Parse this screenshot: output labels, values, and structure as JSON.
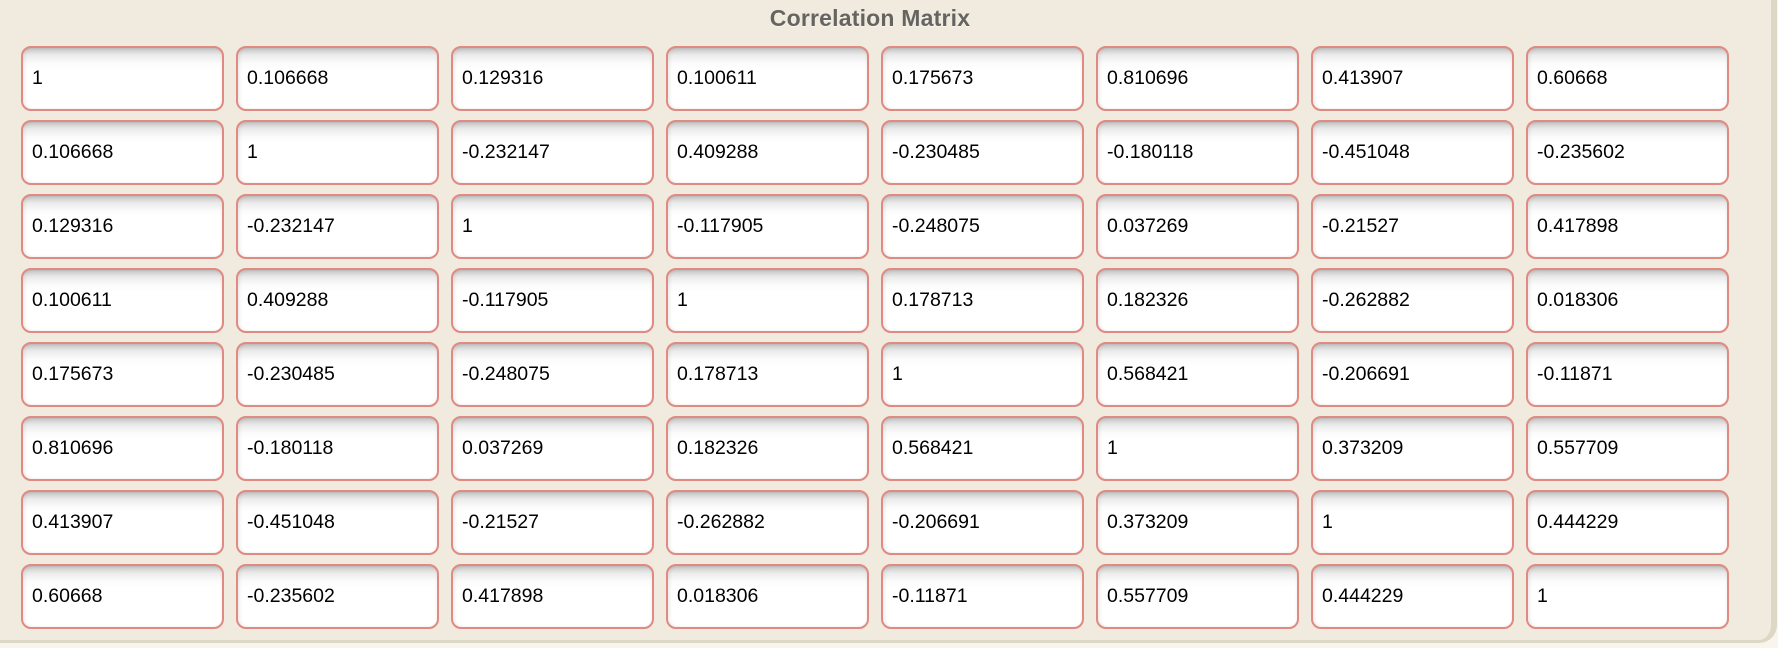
{
  "title": "Correlation Matrix",
  "colors": {
    "page_background": "#f8f5ec",
    "panel_background": "#f0ebde",
    "panel_edge": "#ddd7c6",
    "cell_border": "#e08a81",
    "cell_background": "#ffffff",
    "title_color": "#666460",
    "cell_text": "#000000"
  },
  "chart_data": {
    "type": "table",
    "title": "Correlation Matrix",
    "rows": 8,
    "cols": 8,
    "values": [
      [
        "1",
        "0.106668",
        "0.129316",
        "0.100611",
        "0.175673",
        "0.810696",
        "0.413907",
        "0.60668"
      ],
      [
        "0.106668",
        "1",
        "-0.232147",
        "0.409288",
        "-0.230485",
        "-0.180118",
        "-0.451048",
        "-0.235602"
      ],
      [
        "0.129316",
        "-0.232147",
        "1",
        "-0.117905",
        "-0.248075",
        "0.037269",
        "-0.21527",
        "0.417898"
      ],
      [
        "0.100611",
        "0.409288",
        "-0.117905",
        "1",
        "0.178713",
        "0.182326",
        "-0.262882",
        "0.018306"
      ],
      [
        "0.175673",
        "-0.230485",
        "-0.248075",
        "0.178713",
        "1",
        "0.568421",
        "-0.206691",
        "-0.11871"
      ],
      [
        "0.810696",
        "-0.180118",
        "0.037269",
        "0.182326",
        "0.568421",
        "1",
        "0.373209",
        "0.557709"
      ],
      [
        "0.413907",
        "-0.451048",
        "-0.21527",
        "-0.262882",
        "-0.206691",
        "0.373209",
        "1",
        "0.444229"
      ],
      [
        "0.60668",
        "-0.235602",
        "0.417898",
        "0.018306",
        "-0.11871",
        "0.557709",
        "0.444229",
        "1"
      ]
    ]
  }
}
